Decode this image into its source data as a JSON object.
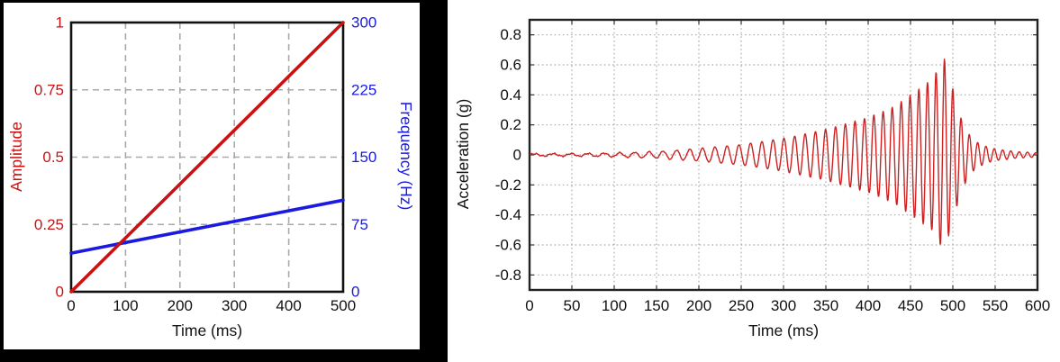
{
  "figure": {
    "background": "#ffffff",
    "left_panel_frame_color": "#000000",
    "text_color": "#111111",
    "grid_color": "#aaaaaa"
  },
  "chart_data": [
    {
      "type": "line",
      "xlabel": "Time (ms)",
      "xlim": [
        0,
        500
      ],
      "x_ticks": [
        0,
        100,
        200,
        300,
        400,
        500
      ],
      "grid": "dashed",
      "legend": "none",
      "axes": {
        "left": {
          "label": "Amplitude",
          "color": "#cc1111",
          "lim": [
            0,
            1
          ],
          "ticks": [
            0,
            0.25,
            0.5,
            0.75,
            1
          ]
        },
        "right": {
          "label": "Frequency (Hz)",
          "color": "#1a1ae0",
          "lim": [
            0,
            300
          ],
          "ticks": [
            0,
            75,
            150,
            225,
            300
          ]
        }
      },
      "series": [
        {
          "name": "frequency",
          "axis": "right",
          "color": "#1a1ae0",
          "x": [
            0,
            500
          ],
          "y": [
            43,
            102
          ]
        },
        {
          "name": "amplitude",
          "axis": "left",
          "color": "#cc1111",
          "x": [
            0,
            500
          ],
          "y": [
            0,
            1
          ]
        }
      ]
    },
    {
      "type": "line",
      "xlabel": "Time (ms)",
      "ylabel": "Acceleration (g)",
      "xlim": [
        0,
        600
      ],
      "ylim": [
        -0.9,
        0.9
      ],
      "x_ticks": [
        0,
        50,
        100,
        150,
        200,
        250,
        300,
        350,
        400,
        450,
        500,
        550,
        600
      ],
      "y_ticks": [
        -0.8,
        -0.6,
        -0.4,
        -0.2,
        0,
        0.2,
        0.4,
        0.6,
        0.8
      ],
      "grid": "dotted",
      "legend": "none",
      "series": [
        {
          "name": "acceleration",
          "color": "#cc2222",
          "signal": {
            "kind": "amplitude-modulated linear chirp",
            "freq_start_hz": 43,
            "freq_end_hz": 102,
            "freq_ramp_end_ms": 500,
            "peak_g": 0.6,
            "peak_time_ms": 488,
            "sample_step_ms": 0.5,
            "noise_g": 0.006,
            "envelope_g": [
              [
                0,
                0.007
              ],
              [
                60,
                0.009
              ],
              [
                100,
                0.013
              ],
              [
                150,
                0.022
              ],
              [
                200,
                0.042
              ],
              [
                250,
                0.068
              ],
              [
                300,
                0.11
              ],
              [
                350,
                0.17
              ],
              [
                400,
                0.25
              ],
              [
                430,
                0.32
              ],
              [
                455,
                0.42
              ],
              [
                475,
                0.5
              ],
              [
                483,
                0.58
              ],
              [
                490,
                0.64
              ],
              [
                497,
                0.5
              ],
              [
                503,
                0.38
              ],
              [
                510,
                0.24
              ],
              [
                520,
                0.13
              ],
              [
                530,
                0.08
              ],
              [
                542,
                0.05
              ],
              [
                555,
                0.035
              ],
              [
                570,
                0.025
              ],
              [
                585,
                0.018
              ],
              [
                600,
                0.014
              ]
            ]
          }
        }
      ]
    }
  ]
}
